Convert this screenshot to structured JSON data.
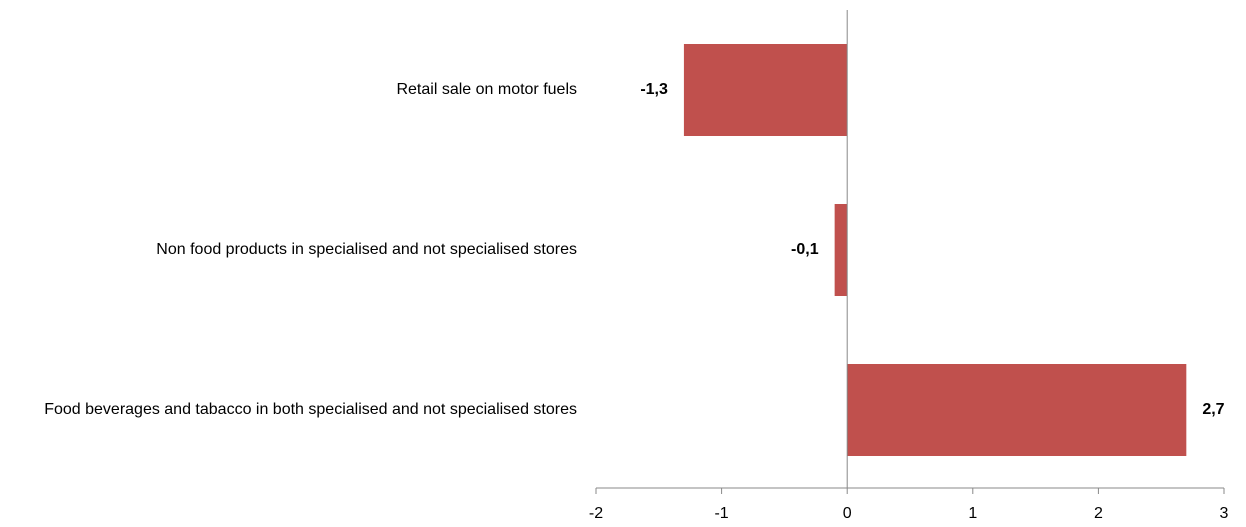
{
  "chart_data": {
    "type": "barh",
    "categories": [
      "Retail sale on motor fuels",
      "Non food products in specialised and not specialised stores",
      "Food beverages and tabacco in both specialised and not specialised stores"
    ],
    "values": [
      -1.3,
      -0.1,
      2.7
    ],
    "value_labels": [
      "-1,3",
      "-0,1",
      "2,7"
    ],
    "color": "#c0504d",
    "xlim": [
      -2,
      3
    ],
    "xticks": [
      -2,
      -1,
      0,
      1,
      2,
      3
    ]
  }
}
